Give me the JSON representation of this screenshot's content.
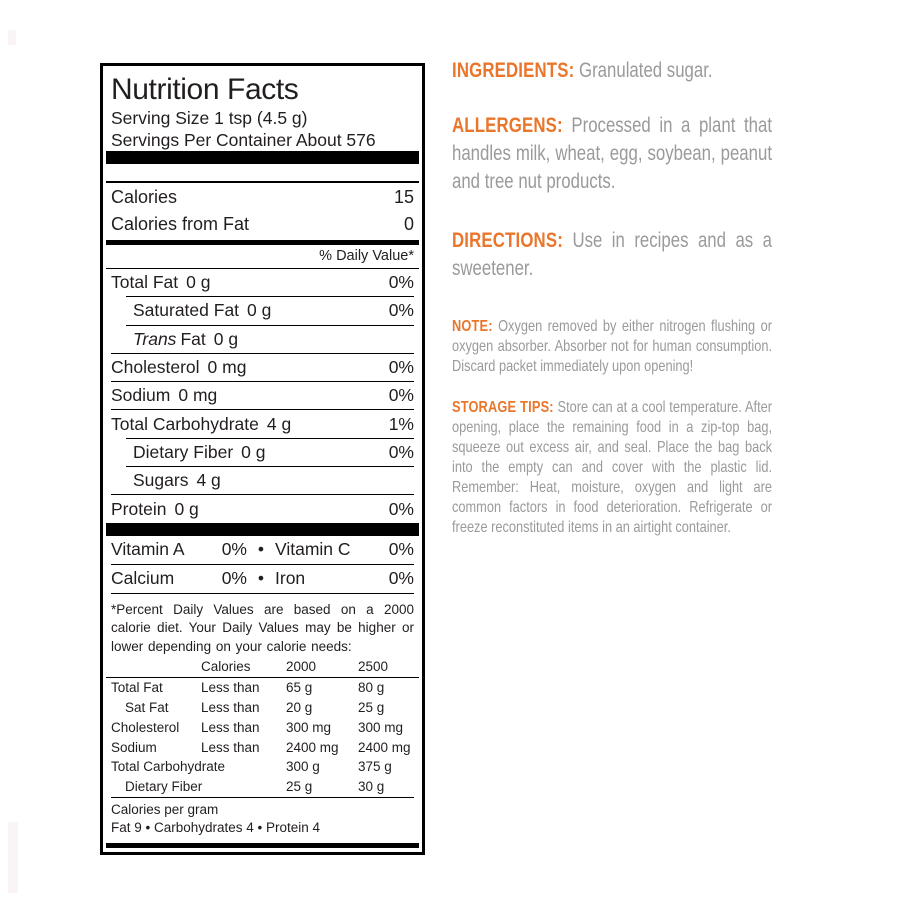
{
  "colors": {
    "accent": "#EA762B",
    "body_text": "#9A9A9A",
    "ink": "#221E1F"
  },
  "label": {
    "title": "Nutrition Facts",
    "serving_size": "Serving Size 1 tsp (4.5 g)",
    "servings_per_container": "Servings Per Container About 576",
    "calories_rows": [
      {
        "name": "Calories",
        "value": "15"
      },
      {
        "name": "Calories from Fat",
        "value": "0"
      }
    ],
    "daily_value_header": "% Daily Value*",
    "nutrients": [
      {
        "name": "Total Fat",
        "amount": "0 g",
        "dv": "0%"
      },
      {
        "name": "Saturated Fat",
        "amount": "0 g",
        "dv": "0%"
      },
      {
        "name_italic": "Trans",
        "name": "Fat",
        "amount": "0 g",
        "dv": ""
      },
      {
        "name": "Cholesterol",
        "amount": "0 mg",
        "dv": "0%"
      },
      {
        "name": "Sodium",
        "amount": "0 mg",
        "dv": "0%"
      },
      {
        "name": "Total Carbohydrate",
        "amount": "4 g",
        "dv": "1%"
      },
      {
        "name": "Dietary Fiber",
        "amount": "0 g",
        "dv": "0%"
      },
      {
        "name": "Sugars",
        "amount": "4 g",
        "dv": ""
      },
      {
        "name": "Protein",
        "amount": "0 g",
        "dv": "0%"
      }
    ],
    "vitamins": [
      {
        "left": "Vitamin A",
        "left_value": "0%",
        "bullet": "•",
        "right": "Vitamin C",
        "right_value": "0%"
      },
      {
        "left": "Calcium",
        "left_value": "0%",
        "bullet": "•",
        "right": "Iron",
        "right_value": "0%"
      }
    ],
    "footnote": "*Percent Daily Values are based on a 2000 calorie diet.  Your Daily Values may be higher or lower depending on your calorie needs:",
    "dv_table": {
      "header": {
        "col2": "Calories",
        "col3": "2000",
        "col4": "2500"
      },
      "rows": [
        {
          "name": "Total Fat",
          "qualifier": "Less than",
          "v2000": "65 g",
          "v2500": "80 g"
        },
        {
          "name": "Sat Fat",
          "qualifier": "Less than",
          "v2000": "20 g",
          "v2500": "25 g"
        },
        {
          "name": "Cholesterol",
          "qualifier": "Less than",
          "v2000": "300 mg",
          "v2500": "300 mg"
        },
        {
          "name": "Sodium",
          "qualifier": "Less than",
          "v2000": "2400 mg",
          "v2500": "2400 mg"
        },
        {
          "name": "Total Carbohydrate",
          "qualifier": "",
          "v2000": "300 g",
          "v2500": "375 g"
        },
        {
          "name": "Dietary Fiber",
          "qualifier": "",
          "v2000": "25 g",
          "v2500": "30 g"
        }
      ]
    },
    "calories_per_gram": {
      "line1": "Calories per gram",
      "line2": "Fat 9 • Carbohydrates 4 • Protein 4"
    }
  },
  "info": {
    "ingredients": {
      "label": "INGREDIENTS:",
      "text": "Granulated sugar."
    },
    "allergens": {
      "label": "ALLERGENS:",
      "text": "Processed in a plant that handles milk, wheat, egg, soybean, peanut and tree nut products."
    },
    "directions": {
      "label": "DIRECTIONS:",
      "text": "Use in recipes and as a sweetener."
    },
    "note": {
      "label": "NOTE:",
      "text": "Oxygen removed by either nitrogen flushing or oxygen absorber. Absorber not for human consumption. Discard packet immediately upon opening!"
    },
    "storage": {
      "label": "STORAGE TIPS:",
      "text": "Store can at a cool temperature. After opening, place the remaining food in a zip-top bag, squeeze out excess air, and seal. Place the bag back into the empty can and cover with the plastic lid. Remember: Heat, moisture, oxygen and light are common factors in food deterioration. Refrigerate or freeze reconstituted items in an airtight container."
    }
  }
}
